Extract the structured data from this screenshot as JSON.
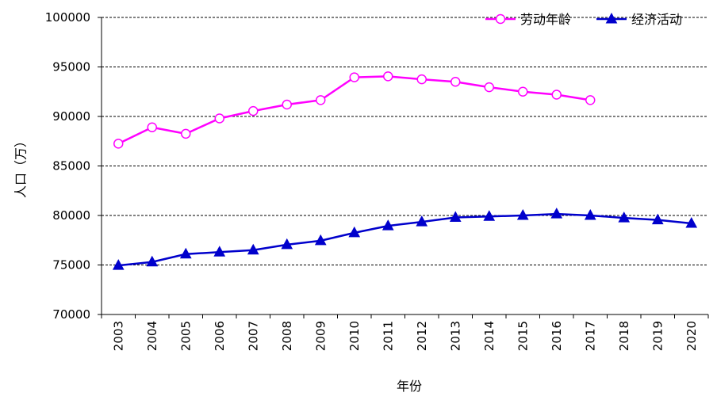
{
  "chart_data": {
    "type": "line",
    "x": [
      "2003",
      "2004",
      "2005",
      "2006",
      "2007",
      "2008",
      "2009",
      "2010",
      "2011",
      "2012",
      "2013",
      "2014",
      "2015",
      "2016",
      "2017",
      "2018",
      "2019",
      "2020"
    ],
    "series": [
      {
        "name": "劳动年龄",
        "color": "#ff00ff",
        "marker": "open-circle",
        "values": [
          87250,
          88900,
          88250,
          89800,
          90550,
          91200,
          91650,
          93950,
          94050,
          93750,
          93500,
          92950,
          92500,
          92200,
          91650,
          null,
          null,
          null
        ]
      },
      {
        "name": "经济活动",
        "color": "#0000cc",
        "marker": "filled-triangle",
        "values": [
          74950,
          75300,
          76100,
          76300,
          76500,
          77050,
          77450,
          78250,
          78950,
          79350,
          79800,
          79900,
          80000,
          80150,
          80000,
          79750,
          79550,
          79200
        ]
      }
    ],
    "title": "",
    "xlabel": "年份",
    "ylabel": "人口（万）",
    "ylim": [
      70000,
      100000
    ],
    "yticks": [
      "70000",
      "75000",
      "80000",
      "85000",
      "90000",
      "95000",
      "100000"
    ],
    "grid": "horizontal-dashed",
    "legend_position": "top-right"
  }
}
